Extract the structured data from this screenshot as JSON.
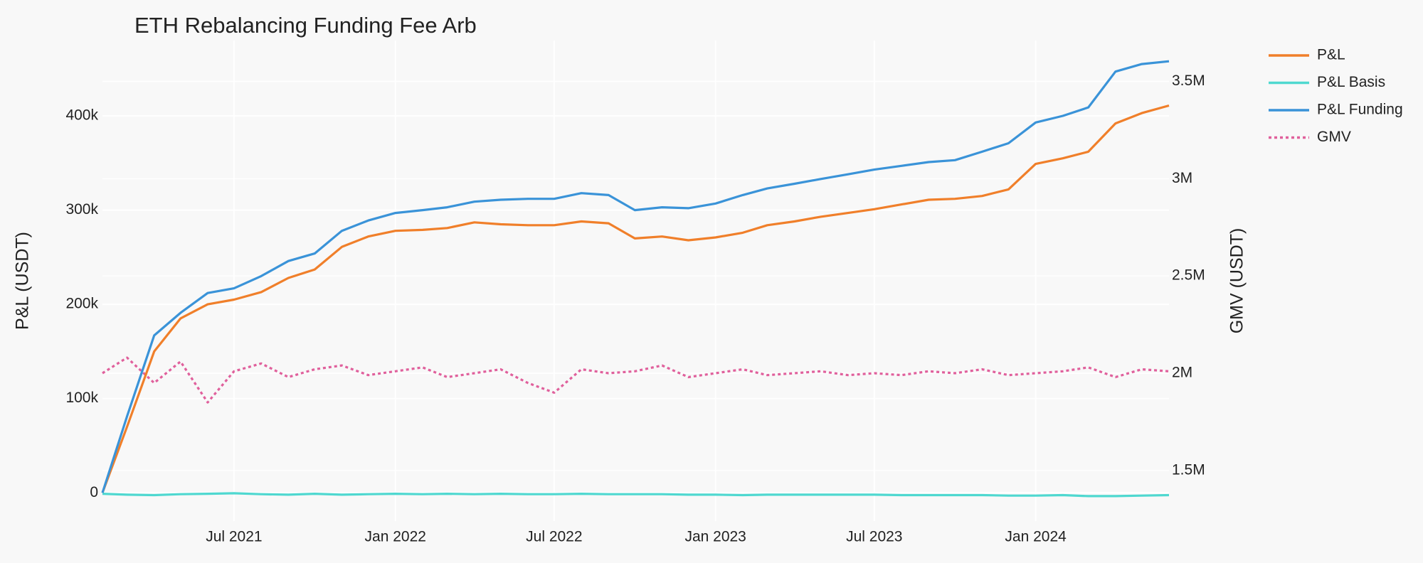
{
  "chart_data": {
    "type": "line",
    "title": "ETH Rebalancing Funding Fee Arb",
    "x": [
      "2021-02",
      "2021-03",
      "2021-04",
      "2021-05",
      "2021-06",
      "2021-07",
      "2021-08",
      "2021-09",
      "2021-10",
      "2021-11",
      "2021-12",
      "2022-01",
      "2022-02",
      "2022-03",
      "2022-04",
      "2022-05",
      "2022-06",
      "2022-07",
      "2022-08",
      "2022-09",
      "2022-10",
      "2022-11",
      "2022-12",
      "2023-01",
      "2023-02",
      "2023-03",
      "2023-04",
      "2023-05",
      "2023-06",
      "2023-07",
      "2023-08",
      "2023-09",
      "2023-10",
      "2023-11",
      "2023-12",
      "2024-01",
      "2024-02",
      "2024-03",
      "2024-04",
      "2024-05",
      "2024-06"
    ],
    "series": [
      {
        "name": "P&L",
        "color": "#f07f2a",
        "values": [
          0,
          70000,
          150000,
          185000,
          200000,
          205000,
          213000,
          228000,
          237000,
          261000,
          272000,
          278000,
          279000,
          281000,
          287000,
          285000,
          284000,
          284000,
          288000,
          286000,
          270000,
          272000,
          268000,
          271000,
          276000,
          284000,
          288000,
          293000,
          297000,
          301000,
          306000,
          311000,
          312000,
          315000,
          322000,
          349000,
          355000,
          362000,
          392000,
          403000,
          411000
        ]
      },
      {
        "name": "P&L Basis",
        "color": "#4fd8d0",
        "values": [
          -1000,
          -2000,
          -2500,
          -1500,
          -1000,
          -500,
          -1500,
          -2000,
          -1000,
          -2000,
          -1500,
          -1000,
          -1500,
          -1000,
          -1500,
          -1000,
          -1500,
          -1500,
          -1000,
          -1500,
          -1500,
          -1500,
          -2000,
          -2000,
          -2500,
          -2000,
          -2000,
          -2000,
          -2000,
          -2000,
          -2500,
          -2500,
          -2500,
          -2500,
          -3000,
          -3000,
          -2500,
          -3500,
          -3500,
          -3000,
          -2500
        ]
      },
      {
        "name": "P&L Funding",
        "color": "#3a93d8",
        "values": [
          0,
          81000,
          167000,
          191000,
          212000,
          217000,
          230000,
          246000,
          254000,
          278000,
          289000,
          297000,
          300000,
          303000,
          309000,
          311000,
          312000,
          312000,
          318000,
          316000,
          300000,
          303000,
          302000,
          307000,
          316000,
          323000,
          328000,
          333000,
          338000,
          343000,
          347000,
          351000,
          353000,
          362000,
          371000,
          393000,
          400000,
          409000,
          447000,
          455000,
          458000
        ]
      },
      {
        "name": "GMV",
        "color": "#e0609c",
        "axis": "y2",
        "dash": "dot",
        "values": [
          2000000,
          2080000,
          1950000,
          2060000,
          1850000,
          2010000,
          2050000,
          1980000,
          2020000,
          2040000,
          1990000,
          2010000,
          2030000,
          1980000,
          2000000,
          2020000,
          1950000,
          1900000,
          2020000,
          2000000,
          2010000,
          2040000,
          1980000,
          2000000,
          2020000,
          1990000,
          2000000,
          2010000,
          1990000,
          2000000,
          1990000,
          2010000,
          2000000,
          2020000,
          1990000,
          2000000,
          2010000,
          2030000,
          1980000,
          2020000,
          2010000
        ]
      }
    ],
    "xlim": [
      "2021-02",
      "2024-06"
    ],
    "xticks": [
      {
        "value": "2021-07",
        "label": "Jul 2021"
      },
      {
        "value": "2022-01",
        "label": "Jan 2022"
      },
      {
        "value": "2022-07",
        "label": "Jul 2022"
      },
      {
        "value": "2023-01",
        "label": "Jan 2023"
      },
      {
        "value": "2023-07",
        "label": "Jul 2023"
      },
      {
        "value": "2024-01",
        "label": "Jan 2024"
      }
    ],
    "ylim": [
      -30000,
      480000
    ],
    "yticks": [
      0,
      {
        "value": 100000,
        "label": "100k"
      },
      {
        "value": 200000,
        "label": "200k"
      },
      {
        "value": 300000,
        "label": "300k"
      },
      {
        "value": 400000,
        "label": "400k"
      }
    ],
    "y2lim": [
      1240000,
      3710000
    ],
    "y2ticks": [
      {
        "value": 1500000,
        "label": "1.5M"
      },
      {
        "value": 2000000,
        "label": "2M"
      },
      {
        "value": 2500000,
        "label": "2.5M"
      },
      {
        "value": 3000000,
        "label": "3M"
      },
      {
        "value": 3500000,
        "label": "3.5M"
      }
    ],
    "ylabel": "P&L (USDT)",
    "y2label": "GMV (USDT)",
    "grid": true
  }
}
